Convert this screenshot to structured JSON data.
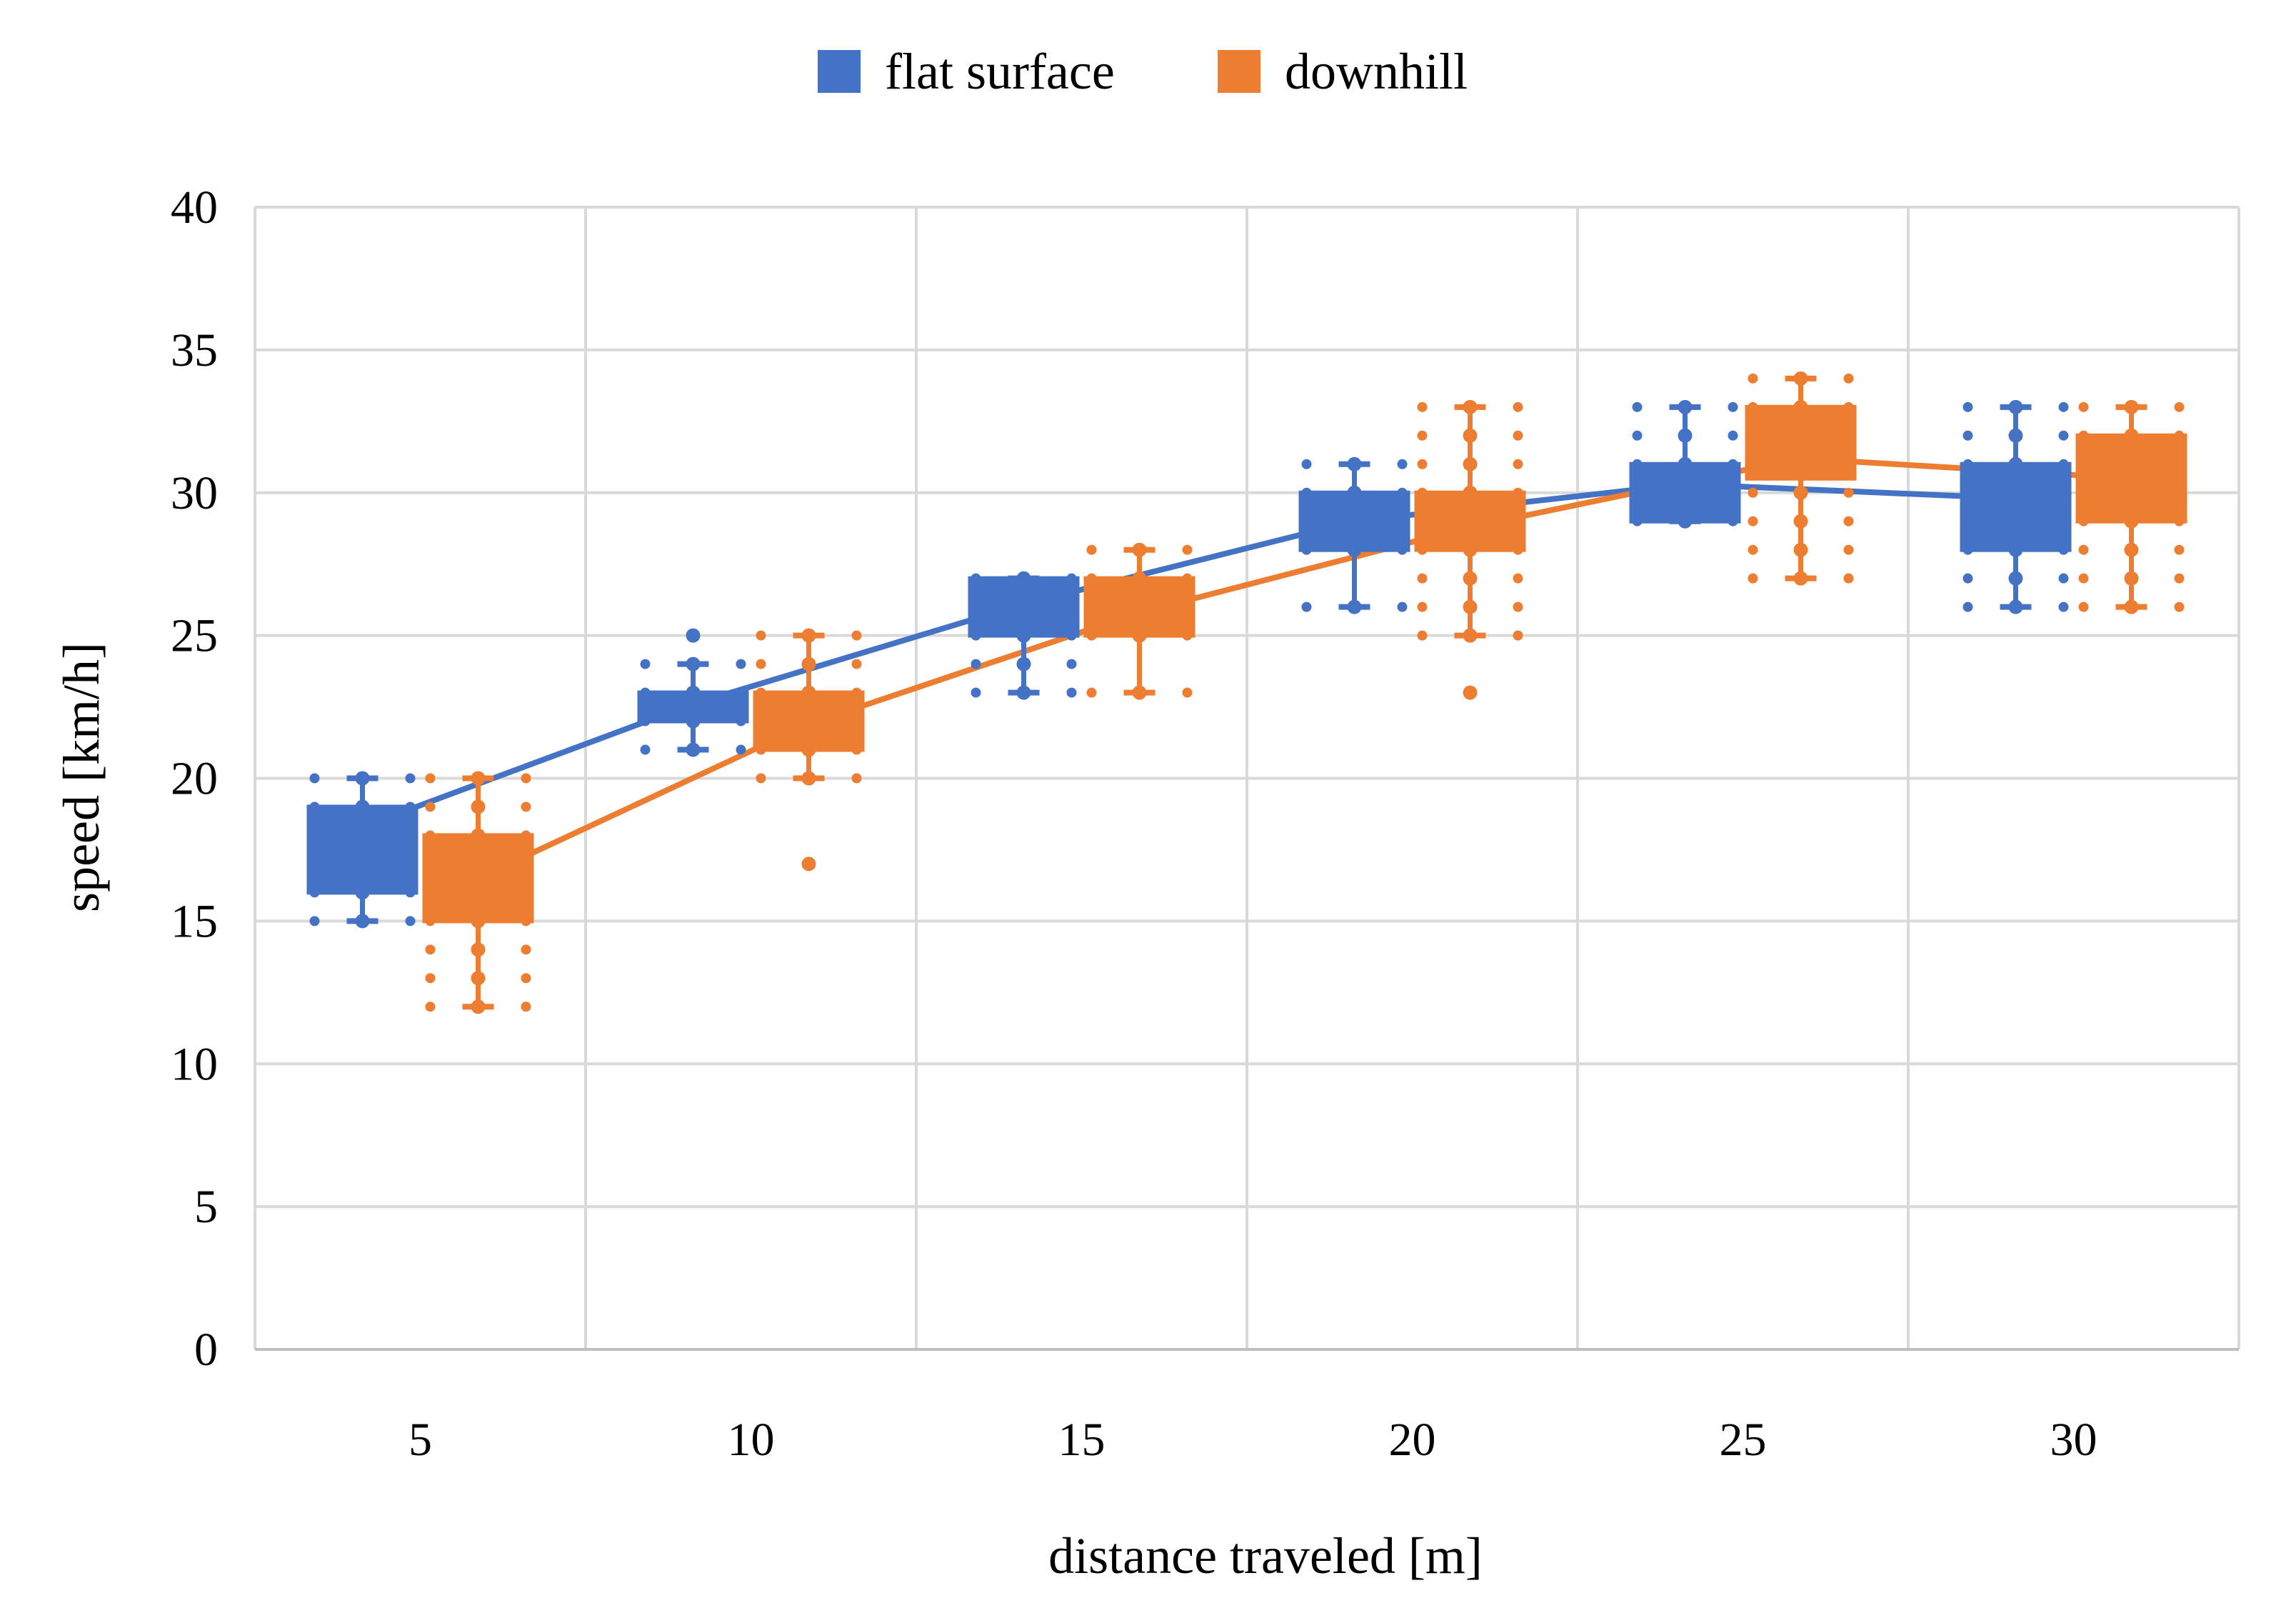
{
  "chart_data": {
    "type": "box",
    "xlabel": "distance traveled [m]",
    "ylabel": "speed [km/h]",
    "categories": [
      "5",
      "10",
      "15",
      "20",
      "25",
      "30"
    ],
    "ylim": [
      0,
      40
    ],
    "yticks": [
      "0",
      "5",
      "10",
      "15",
      "20",
      "25",
      "30",
      "35",
      "40"
    ],
    "grid": true,
    "legend_position": "top",
    "series": [
      {
        "name": "flat surface",
        "color": "#4472C4",
        "boxes": [
          {
            "min": 15,
            "q1": 16,
            "median": 18,
            "q3": 19,
            "max": 20,
            "mean": 18.3,
            "points": [
              15,
              16,
              17,
              18,
              19,
              20
            ],
            "outliers": []
          },
          {
            "min": 21,
            "q1": 22,
            "median": 22.5,
            "q3": 23,
            "max": 24,
            "mean": 22.6,
            "points": [
              21,
              22,
              23,
              24
            ],
            "outliers": [
              25
            ]
          },
          {
            "min": 23,
            "q1": 25,
            "median": 26,
            "q3": 27,
            "max": 27,
            "mean": 26.1,
            "points": [
              23,
              24,
              25,
              26,
              27
            ],
            "outliers": []
          },
          {
            "min": 26,
            "q1": 28,
            "median": 29,
            "q3": 30,
            "max": 31,
            "mean": 29.0,
            "points": [
              26,
              28,
              29,
              30,
              31
            ],
            "outliers": []
          },
          {
            "min": 29,
            "q1": 29,
            "median": 30,
            "q3": 31,
            "max": 33,
            "mean": 30.3,
            "points": [
              29,
              30,
              31,
              32,
              33
            ],
            "outliers": []
          },
          {
            "min": 26,
            "q1": 28,
            "median": 30,
            "q3": 31,
            "max": 33,
            "mean": 29.8,
            "points": [
              26,
              27,
              28,
              29,
              30,
              31,
              32,
              33
            ],
            "outliers": []
          }
        ]
      },
      {
        "name": "downhill",
        "color": "#ED7D31",
        "boxes": [
          {
            "min": 12,
            "q1": 15,
            "median": 16,
            "q3": 18,
            "max": 20,
            "mean": 16.5,
            "points": [
              12,
              13,
              14,
              15,
              16,
              17,
              18,
              19,
              20
            ],
            "outliers": []
          },
          {
            "min": 20,
            "q1": 21,
            "median": 22,
            "q3": 23,
            "max": 25,
            "mean": 21.9,
            "points": [
              20,
              21,
              22,
              23,
              24,
              25
            ],
            "outliers": [
              17
            ]
          },
          {
            "min": 23,
            "q1": 25,
            "median": 26,
            "q3": 27,
            "max": 28,
            "mean": 25.8,
            "points": [
              23,
              25,
              26,
              27,
              28
            ],
            "outliers": []
          },
          {
            "min": 25,
            "q1": 28,
            "median": 29,
            "q3": 30,
            "max": 33,
            "mean": 28.8,
            "points": [
              25,
              26,
              27,
              28,
              29,
              30,
              31,
              32,
              33
            ],
            "outliers": [
              23
            ]
          },
          {
            "min": 27,
            "q1": 30.5,
            "median": 32,
            "q3": 33,
            "max": 34,
            "mean": 31.2,
            "points": [
              27,
              28,
              29,
              30,
              31,
              32,
              33,
              34
            ],
            "outliers": []
          },
          {
            "min": 26,
            "q1": 29,
            "median": 31,
            "q3": 32,
            "max": 33,
            "mean": 30.5,
            "points": [
              26,
              27,
              28,
              29,
              30,
              31,
              32,
              33
            ],
            "outliers": []
          }
        ]
      }
    ]
  }
}
